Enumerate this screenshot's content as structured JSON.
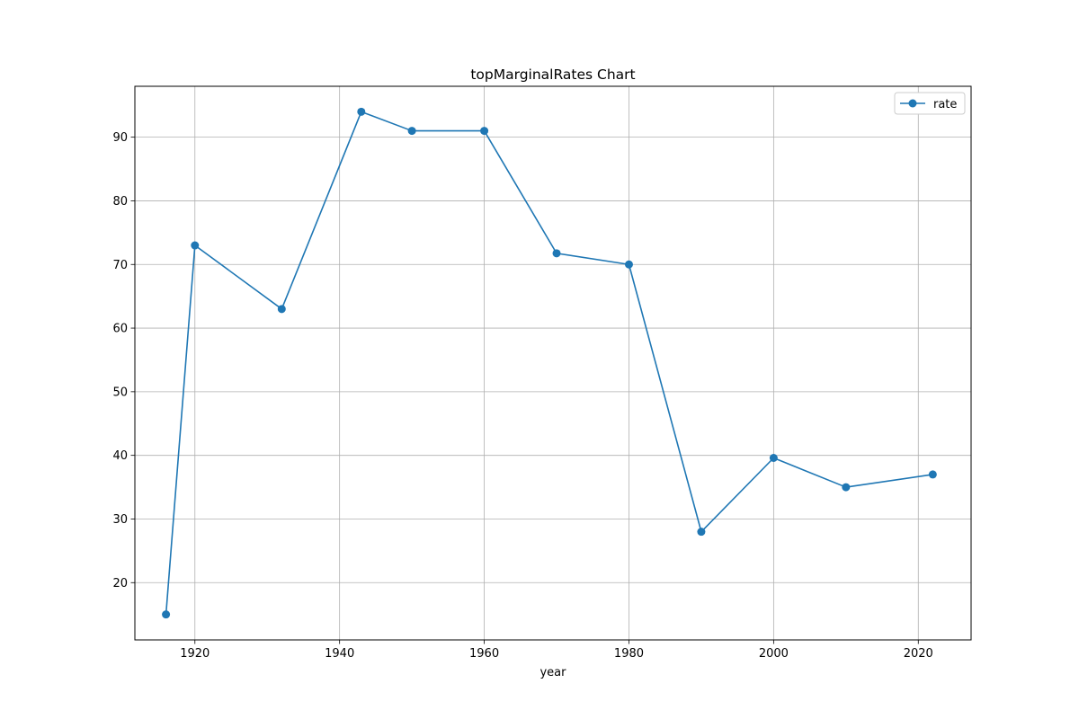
{
  "chart_data": {
    "type": "line",
    "title": "topMarginalRates Chart",
    "xlabel": "year",
    "ylabel": "",
    "x": [
      1916,
      1920,
      1932,
      1943,
      1950,
      1960,
      1970,
      1980,
      1990,
      2000,
      2010,
      2022
    ],
    "series": [
      {
        "name": "rate",
        "values": [
          15,
          73,
          63,
          94,
          91,
          91,
          71.75,
          70,
          28,
          39.6,
          35,
          37
        ],
        "color": "#1f77b4",
        "marker": "circle"
      }
    ],
    "xlim": [
      1911.7,
      2027.3
    ],
    "ylim": [
      11,
      98
    ],
    "xticks": [
      1920,
      1940,
      1960,
      1980,
      2000,
      2020
    ],
    "yticks": [
      20,
      30,
      40,
      50,
      60,
      70,
      80,
      90
    ],
    "grid": true,
    "legend_position": "top-right"
  }
}
